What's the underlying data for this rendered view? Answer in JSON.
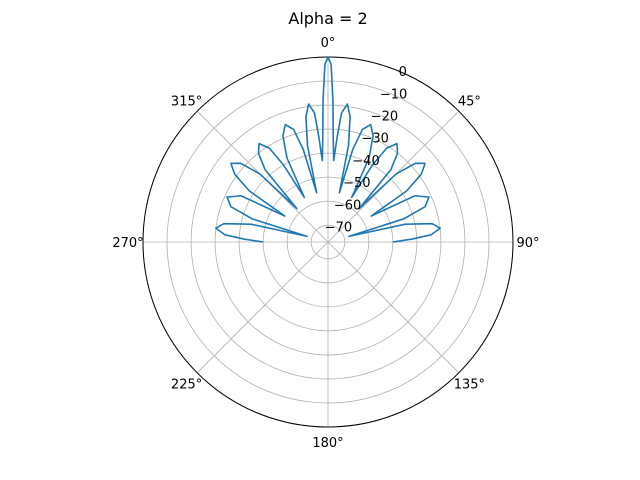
{
  "chart_data": {
    "type": "line",
    "projection": "polar",
    "title": "Alpha = 2",
    "theta_zero_location": "N",
    "theta_direction": "clockwise",
    "angular_ticks": [
      "0°",
      "45°",
      "90°",
      "135°",
      "180°",
      "225°",
      "270°",
      "315°"
    ],
    "radial_ticks": [
      "0",
      "−10",
      "−20",
      "−30",
      "−40",
      "−50",
      "−60",
      "−70"
    ],
    "rlim": [
      -77,
      0
    ],
    "grid": true,
    "series": [
      {
        "color": "#1f77b4",
        "points": [
          [
            -90,
            -50
          ],
          [
            -88,
            -42
          ],
          [
            -86,
            -34
          ],
          [
            -83,
            -30
          ],
          [
            -80,
            -33
          ],
          [
            -77,
            -44
          ],
          [
            -75,
            -68
          ],
          [
            -73,
            -44
          ],
          [
            -70,
            -34
          ],
          [
            -66,
            -31
          ],
          [
            -62,
            -36
          ],
          [
            -59,
            -56
          ],
          [
            -57,
            -38
          ],
          [
            -54,
            -29
          ],
          [
            -51,
            -25
          ],
          [
            -48,
            -28
          ],
          [
            -45,
            -37
          ],
          [
            -43,
            -58
          ],
          [
            -41,
            -37
          ],
          [
            -38,
            -30
          ],
          [
            -35,
            -27
          ],
          [
            -32,
            -31
          ],
          [
            -30,
            -40
          ],
          [
            -28,
            -56
          ],
          [
            -26,
            -38
          ],
          [
            -23,
            -29
          ],
          [
            -20,
            -25
          ],
          [
            -17,
            -28
          ],
          [
            -15,
            -37
          ],
          [
            -13,
            -56
          ],
          [
            -12,
            -36
          ],
          [
            -10,
            -24
          ],
          [
            -8,
            -19
          ],
          [
            -6,
            -23
          ],
          [
            -5,
            -33
          ],
          [
            -4,
            -43
          ],
          [
            -3,
            -35
          ],
          [
            -2,
            -18
          ],
          [
            -1,
            -3
          ],
          [
            0,
            0
          ],
          [
            1,
            -3
          ],
          [
            2,
            -18
          ],
          [
            3,
            -35
          ],
          [
            4,
            -43
          ],
          [
            5,
            -33
          ],
          [
            6,
            -23
          ],
          [
            8,
            -19
          ],
          [
            10,
            -24
          ],
          [
            12,
            -36
          ],
          [
            13,
            -56
          ],
          [
            15,
            -37
          ],
          [
            17,
            -28
          ],
          [
            20,
            -25
          ],
          [
            23,
            -29
          ],
          [
            26,
            -38
          ],
          [
            28,
            -56
          ],
          [
            30,
            -40
          ],
          [
            32,
            -31
          ],
          [
            35,
            -27
          ],
          [
            38,
            -30
          ],
          [
            41,
            -37
          ],
          [
            43,
            -58
          ],
          [
            45,
            -37
          ],
          [
            48,
            -28
          ],
          [
            51,
            -25
          ],
          [
            54,
            -29
          ],
          [
            57,
            -38
          ],
          [
            59,
            -56
          ],
          [
            62,
            -36
          ],
          [
            66,
            -31
          ],
          [
            70,
            -34
          ],
          [
            73,
            -44
          ],
          [
            75,
            -68
          ],
          [
            77,
            -44
          ],
          [
            80,
            -33
          ],
          [
            83,
            -30
          ],
          [
            86,
            -34
          ],
          [
            88,
            -42
          ],
          [
            90,
            -50
          ]
        ]
      }
    ]
  }
}
